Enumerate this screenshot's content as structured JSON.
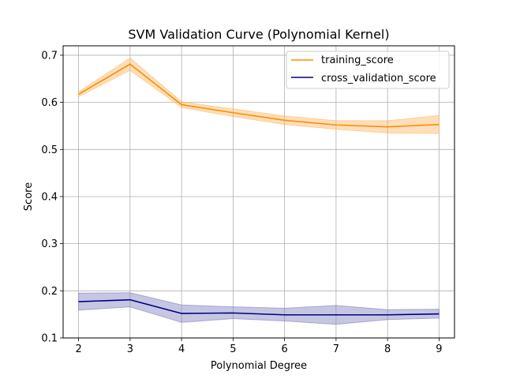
{
  "chart_data": {
    "type": "line",
    "title": "SVM Validation Curve (Polynomial Kernel)",
    "xlabel": "Polynomial Degree",
    "ylabel": "Score",
    "x": [
      2,
      3,
      4,
      5,
      6,
      7,
      8,
      9
    ],
    "xlim": [
      1.7,
      9.3
    ],
    "ylim": [
      0.1,
      0.72
    ],
    "xticks": [
      2,
      3,
      4,
      5,
      6,
      7,
      8,
      9
    ],
    "yticks": [
      0.1,
      0.2,
      0.3,
      0.4,
      0.5,
      0.6,
      0.7
    ],
    "ytick_labels": [
      "0.1",
      "0.2",
      "0.3",
      "0.4",
      "0.5",
      "0.6",
      "0.7"
    ],
    "grid": true,
    "legend_position": "top-right",
    "series": [
      {
        "name": "training_score",
        "color": "#ff8c00",
        "band_color": "#ffb866",
        "values": [
          0.617,
          0.681,
          0.595,
          0.578,
          0.562,
          0.552,
          0.548,
          0.553
        ],
        "lower": [
          0.612,
          0.668,
          0.589,
          0.57,
          0.553,
          0.543,
          0.535,
          0.534
        ],
        "upper": [
          0.622,
          0.694,
          0.601,
          0.586,
          0.571,
          0.561,
          0.561,
          0.572
        ]
      },
      {
        "name": "cross_validation_score",
        "color": "#000080",
        "band_color": "#8080c0",
        "values": [
          0.177,
          0.181,
          0.152,
          0.153,
          0.149,
          0.149,
          0.149,
          0.151
        ],
        "lower": [
          0.159,
          0.166,
          0.133,
          0.141,
          0.136,
          0.129,
          0.139,
          0.142
        ],
        "upper": [
          0.195,
          0.196,
          0.17,
          0.166,
          0.163,
          0.169,
          0.16,
          0.161
        ]
      }
    ]
  }
}
